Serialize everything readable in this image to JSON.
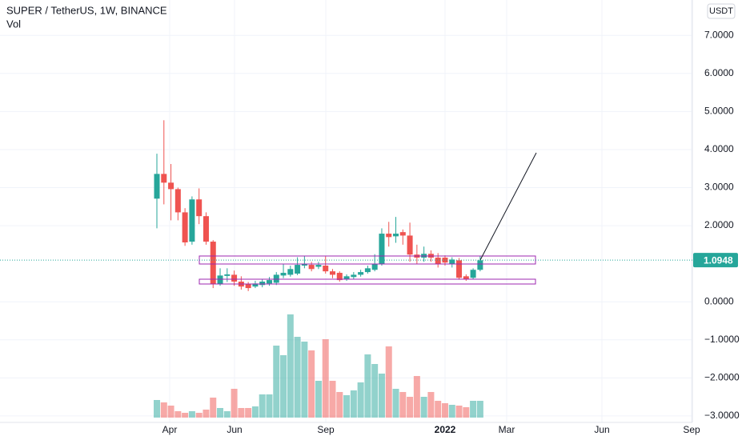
{
  "chart_data": {
    "type": "candlestick",
    "title": "SUPER / TetherUS, 1W, BINANCE",
    "volume_label": "Vol",
    "currency": "USDT",
    "last_price": {
      "value": 1.0948,
      "label": "1.0948"
    },
    "up_color": "#26a69a",
    "down_color": "#ef5350",
    "grid": true,
    "ylim": [
      -3.17,
      7.93
    ],
    "yticks": [
      {
        "value": 7,
        "label": "7.0000"
      },
      {
        "value": 6,
        "label": "6.0000"
      },
      {
        "value": 5,
        "label": "5.0000"
      },
      {
        "value": 4,
        "label": "4.0000"
      },
      {
        "value": 3,
        "label": "3.0000"
      },
      {
        "value": 2,
        "label": "2.0000"
      },
      {
        "value": 0,
        "label": "0.0000"
      },
      {
        "value": -1,
        "label": "−1.0000"
      },
      {
        "value": -2,
        "label": "−2.0000"
      },
      {
        "value": -3,
        "label": "−3.0000"
      }
    ],
    "xticks": [
      "Apr",
      "Jun",
      "Sep",
      "2022",
      "Mar",
      "Jun",
      "Sep"
    ],
    "open": [
      2.71,
      3.36,
      3.13,
      2.96,
      2.35,
      1.58,
      2.69,
      2.25,
      1.58,
      0.46,
      0.68,
      0.71,
      0.53,
      0.46,
      0.4,
      0.44,
      0.48,
      0.5,
      0.69,
      0.71,
      0.74,
      0.95,
      0.97,
      0.92,
      0.95,
      0.8,
      0.76,
      0.59,
      0.65,
      0.71,
      0.78,
      0.84,
      0.99,
      1.79,
      1.72,
      1.83,
      1.74,
      1.24,
      1.16,
      1.26,
      1.16,
      1.16,
      0.99,
      1.09,
      0.67,
      0.63,
      0.84
    ],
    "high": [
      3.89,
      4.77,
      3.62,
      3.0,
      2.46,
      2.77,
      2.98,
      2.35,
      1.62,
      0.88,
      0.88,
      0.82,
      0.67,
      0.52,
      0.55,
      0.6,
      0.65,
      0.78,
      1.0,
      0.95,
      1.17,
      1.2,
      1.05,
      1.05,
      1.19,
      0.86,
      0.8,
      0.72,
      0.78,
      0.84,
      0.95,
      1.25,
      1.93,
      2.1,
      2.23,
      1.9,
      2.08,
      1.5,
      1.45,
      1.35,
      1.28,
      1.22,
      1.17,
      1.15,
      0.72,
      0.88,
      1.2
    ],
    "low": [
      1.93,
      2.56,
      2.14,
      2.14,
      1.47,
      1.5,
      2.04,
      1.5,
      0.36,
      0.42,
      0.52,
      0.42,
      0.32,
      0.28,
      0.36,
      0.38,
      0.42,
      0.44,
      0.62,
      0.66,
      0.7,
      0.88,
      0.8,
      0.86,
      0.74,
      0.62,
      0.53,
      0.55,
      0.6,
      0.66,
      0.74,
      0.8,
      0.95,
      1.45,
      1.55,
      1.5,
      1.05,
      1.0,
      1.05,
      1.05,
      0.9,
      0.95,
      0.9,
      0.58,
      0.55,
      0.6,
      0.8
    ],
    "close": [
      3.36,
      3.13,
      2.96,
      2.35,
      1.56,
      2.69,
      2.25,
      1.58,
      0.46,
      0.69,
      0.72,
      0.53,
      0.4,
      0.36,
      0.48,
      0.53,
      0.57,
      0.71,
      0.76,
      0.86,
      0.97,
      0.99,
      0.86,
      0.97,
      0.8,
      0.71,
      0.57,
      0.67,
      0.71,
      0.78,
      0.88,
      0.99,
      1.79,
      1.7,
      1.79,
      1.74,
      1.24,
      1.16,
      1.26,
      1.16,
      0.99,
      1.03,
      1.11,
      0.63,
      0.59,
      0.84,
      1.09
    ],
    "volume": [
      22,
      19,
      15,
      8,
      6,
      8,
      6,
      10,
      25,
      12,
      8,
      36,
      12,
      12,
      14,
      29,
      29,
      90,
      78,
      129,
      101,
      95,
      84,
      46,
      98,
      46,
      32,
      28,
      34,
      44,
      79,
      67,
      55,
      89,
      36,
      32,
      26,
      52,
      26,
      32,
      21,
      18,
      16,
      15,
      13,
      21,
      21
    ]
  }
}
